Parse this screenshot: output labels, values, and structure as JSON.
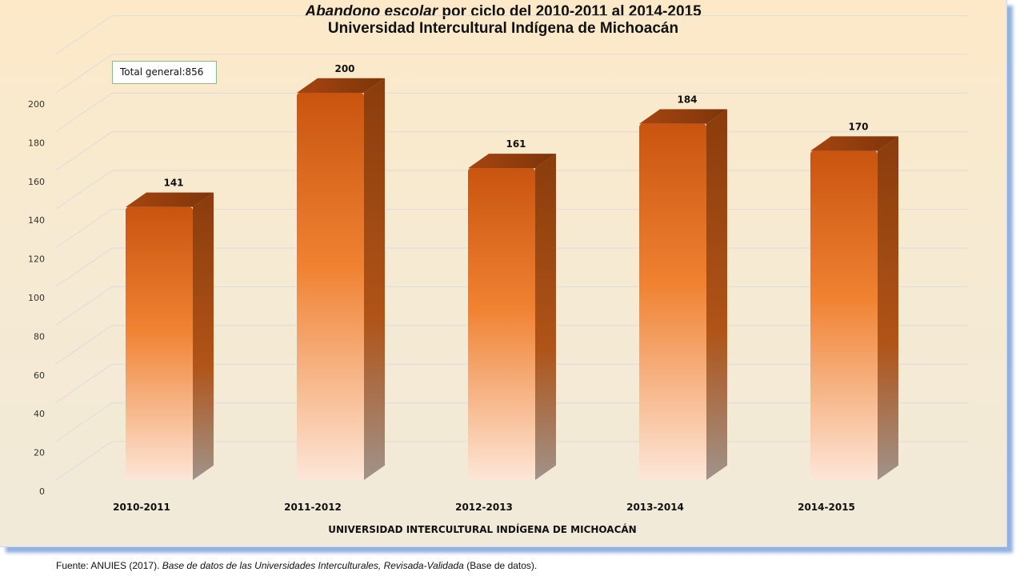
{
  "chart_data": {
    "type": "bar",
    "title_italic": "Abandono escolar",
    "title_rest": "por ciclo del 2010-2011 al 2014-2015",
    "subtitle": "Universidad Intercultural Indígena de Michoacán",
    "categories": [
      "2010-2011",
      "2011-2012",
      "2012-2013",
      "2013-2014",
      "2014-2015"
    ],
    "values": [
      141,
      200,
      161,
      184,
      170
    ],
    "xlabel": "UNIVERSIDAD INTERCULTURAL INDÍGENA DE MICHOACÁN",
    "ylabel": "",
    "ylim": [
      0,
      220
    ],
    "yticks": [
      0,
      20,
      40,
      60,
      80,
      100,
      120,
      140,
      160,
      180,
      200
    ],
    "grid": true,
    "style": "3d-column",
    "colors": {
      "bar_top": "#c9540f",
      "bar_mid": "#f08232",
      "bar_bottom": "#fde6d8",
      "bar_side": "#8a3c0c",
      "grid": "#dcdcdc"
    }
  },
  "annotation": {
    "label": "Total general:",
    "value": "856"
  },
  "source": {
    "prefix": "Fuente:  ANUIES  (2017).",
    "italic": "Base de datos de las Universidades  Interculturales, Revisada-Validada",
    "suffix": "(Base de datos)."
  }
}
